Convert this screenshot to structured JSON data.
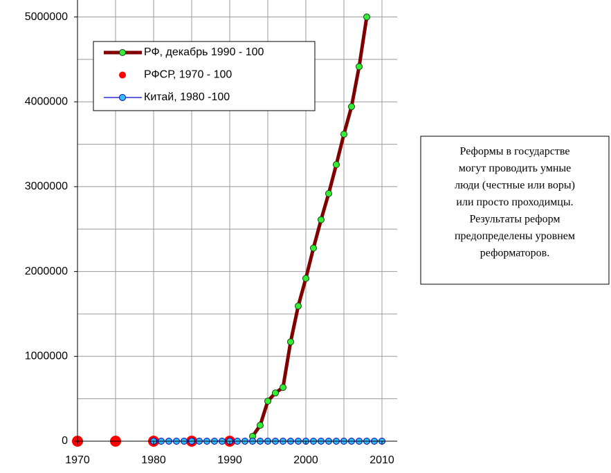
{
  "chart_data": {
    "type": "line",
    "xlim": [
      1970,
      2012
    ],
    "xticks": [
      1970,
      1980,
      1990,
      2000,
      2010
    ],
    "xgrid": [
      1975,
      1980,
      1985,
      1990,
      1995,
      2000,
      2005,
      2010
    ],
    "ylim": [
      0,
      5200000
    ],
    "yticks": [
      0,
      1000000,
      2000000,
      3000000,
      4000000,
      5000000
    ],
    "ygrid": [
      500000,
      1000000,
      1500000,
      2000000,
      2500000,
      3000000,
      3500000,
      4000000,
      4500000,
      5000000
    ],
    "grid": true,
    "series": [
      {
        "name": "РФ, декабрь 1990 - 100",
        "color": "#800000",
        "marker_color": "#33ee33",
        "x": [
          1993,
          1994,
          1995,
          1996,
          1997,
          1998,
          1999,
          2000,
          2001,
          2002,
          2003,
          2004,
          2005,
          2006,
          2007,
          2008
        ],
        "values": [
          57000,
          187000,
          472000,
          569000,
          634000,
          1171000,
          1593000,
          1919000,
          2276000,
          2610000,
          2919000,
          3260000,
          3618000,
          3943000,
          4415000,
          5000000
        ]
      },
      {
        "name": "РФСР, 1970 - 100",
        "color": "#ff0000",
        "x": [
          1970,
          1975,
          1980,
          1985,
          1990
        ],
        "values": [
          100,
          100,
          100,
          100,
          100
        ]
      },
      {
        "name": "Китай, 1980 -100",
        "color": "#0000cc",
        "marker_color": "#33bbff",
        "x": [
          1980,
          1981,
          1982,
          1983,
          1984,
          1985,
          1986,
          1987,
          1988,
          1989,
          1990,
          1991,
          1992,
          1993,
          1994,
          1995,
          1996,
          1997,
          1998,
          1999,
          2000,
          2001,
          2002,
          2003,
          2004,
          2005,
          2006,
          2007,
          2008,
          2009,
          2010
        ],
        "values": [
          100,
          100,
          100,
          100,
          100,
          100,
          100,
          100,
          100,
          100,
          100,
          100,
          100,
          100,
          100,
          100,
          100,
          100,
          100,
          100,
          100,
          100,
          100,
          100,
          100,
          100,
          100,
          100,
          100,
          100,
          100
        ]
      }
    ],
    "annotation": [
      "Реформы в государстве",
      "могут проводить  умные",
      "люди (честные или воры)",
      "или просто проходимцы.",
      "Результаты реформ",
      "предопределены уровнем",
      "реформаторов."
    ]
  }
}
